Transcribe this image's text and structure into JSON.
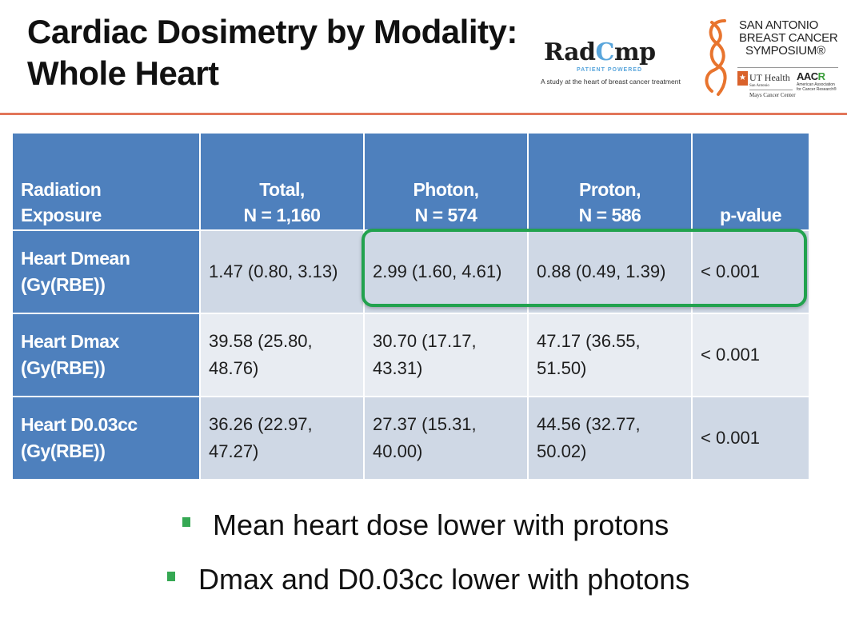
{
  "slide": {
    "title_line1": "Cardiac Dosimetry by Modality:",
    "title_line2": "Whole Heart",
    "accent_color": "#e2765a"
  },
  "logos": {
    "radcomp": {
      "name_prefix": "Rad",
      "name_heart": "C",
      "name_suffix": "mp",
      "tagline": "PATIENT POWERED",
      "subtitle": "A study at the heart of breast cancer treatment",
      "heart_color": "#5aa6dc"
    },
    "sabcs": {
      "line1": "SAN ANTONIO",
      "line2": "BREAST CANCER",
      "line3": "SYMPOSIUM®",
      "ut_health": "UT Health",
      "ut_city": "San Antonio",
      "ut_center": "Mays Cancer Center",
      "aacr_name_a": "AAC",
      "aacr_name_b": "R",
      "aacr_sub1": "American Association",
      "aacr_sub2": "for Cancer Research®"
    }
  },
  "table": {
    "header_color": "#4e80bd",
    "highlight_color": "#22a24e",
    "columns": [
      {
        "line1": "Radiation",
        "line2": "Exposure"
      },
      {
        "line1": "Total,",
        "line2": "N = 1,160"
      },
      {
        "line1": "Photon,",
        "line2": "N = 574"
      },
      {
        "line1": "Proton,",
        "line2": "N = 586"
      },
      {
        "line1": "",
        "line2": "p-value"
      }
    ],
    "rows": [
      {
        "label1": "Heart Dmean",
        "label2": "(Gy(RBE))",
        "total": "1.47 (0.80, 3.13)",
        "photon": "2.99 (1.60, 4.61)",
        "proton": "0.88 (0.49, 1.39)",
        "p": "< 0.001",
        "highlighted": true
      },
      {
        "label1": "Heart Dmax",
        "label2": "(Gy(RBE))",
        "total_1": "39.58 (25.80,",
        "total_2": "48.76)",
        "photon_1": "30.70 (17.17,",
        "photon_2": "43.31)",
        "proton_1": "47.17 (36.55,",
        "proton_2": "51.50)",
        "p": "< 0.001"
      },
      {
        "label1": "Heart D0.03cc",
        "label2": "(Gy(RBE))",
        "total_1": "36.26 (22.97,",
        "total_2": "47.27)",
        "photon_1": "27.37 (15.31,",
        "photon_2": "40.00)",
        "proton_1": "44.56 (32.77,",
        "proton_2": "50.02)",
        "p": "< 0.001"
      }
    ]
  },
  "bullets": [
    {
      "text": "Mean heart dose lower with protons",
      "icon": "square-bullet",
      "color": "#35a853"
    },
    {
      "text": "Dmax and D0.03cc lower with photons",
      "icon": "square-bullet",
      "color": "#35a853"
    }
  ]
}
